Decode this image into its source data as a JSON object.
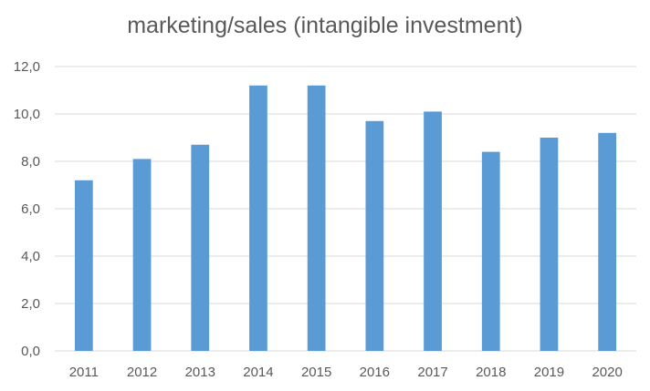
{
  "chart_data": {
    "type": "bar",
    "title": "marketing/sales (intangible investment)",
    "xlabel": "",
    "ylabel": "",
    "categories": [
      "2011",
      "2012",
      "2013",
      "2014",
      "2015",
      "2016",
      "2017",
      "2018",
      "2019",
      "2020"
    ],
    "values": [
      7.2,
      8.1,
      8.7,
      11.2,
      11.2,
      9.7,
      10.1,
      8.4,
      9.0,
      9.2
    ],
    "ylim": [
      0,
      12
    ],
    "yticks": [
      "0,0",
      "2,0",
      "4,0",
      "6,0",
      "8,0",
      "10,0",
      "12,0"
    ],
    "grid": true,
    "legend": "none",
    "bar_color": "#5B9BD5",
    "grid_color": "#D9D9D9",
    "text_color": "#595959"
  }
}
